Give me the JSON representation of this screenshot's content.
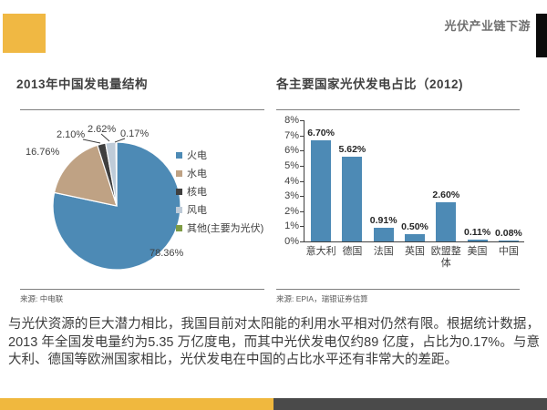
{
  "header": {
    "title": "光伏产业链下游"
  },
  "left_chart": {
    "title": "2013年中国发电量结构",
    "source": "来源: 中电联"
  },
  "right_chart": {
    "title": "各主要国家光伏发电占比（2012)",
    "source": "来源: EPIA，瑞银证券估算"
  },
  "body_text": "与光伏资源的巨大潜力相比，我国目前对太阳能的利用水平相对仍然有限。根据统计数据，2013 年全国发电量约为5.35 万亿度电，而其中光伏发电仅约89 亿度，占比为0.17%。与意大利、德国等欧洲国家相比，光伏发电在中国的占比水平还有非常大的差距。",
  "colors": {
    "accent_yellow": "#f0b843",
    "footer_dark": "#4a4a4a",
    "bar_blue": "#4d8ab5"
  },
  "chart_data": [
    {
      "type": "pie",
      "title": "2013年中国发电量结构",
      "labels": [
        "火电",
        "水电",
        "核电",
        "风电",
        "其他(主要为光伏)"
      ],
      "values": [
        78.36,
        16.76,
        2.1,
        2.62,
        0.17
      ],
      "value_labels": [
        "78.36%",
        "16.76%",
        "2.10%",
        "2.62%",
        "0.17%"
      ],
      "colors": [
        "#4d8ab5",
        "#bfa284",
        "#3f3f3f",
        "#becbd8",
        "#7e9b44"
      ],
      "legend_position": "right",
      "source": "来源: 中电联"
    },
    {
      "type": "bar",
      "title": "各主要国家光伏发电占比（2012)",
      "categories": [
        "意大利",
        "德国",
        "法国",
        "英国",
        "欧盟整体",
        "美国",
        "中国"
      ],
      "values": [
        6.7,
        5.62,
        0.91,
        0.5,
        2.6,
        0.11,
        0.08
      ],
      "value_labels": [
        "6.70%",
        "5.62%",
        "0.91%",
        "0.50%",
        "2.60%",
        "0.11%",
        "0.08%"
      ],
      "bar_color": "#4d8ab5",
      "xlabel": "",
      "ylabel": "",
      "ylim": [
        0,
        8
      ],
      "ytick_labels": [
        "0%",
        "1%",
        "2%",
        "3%",
        "4%",
        "5%",
        "6%",
        "7%",
        "8%"
      ],
      "grid": false,
      "legend_position": "none",
      "source": "来源: EPIA，瑞银证券估算"
    }
  ]
}
